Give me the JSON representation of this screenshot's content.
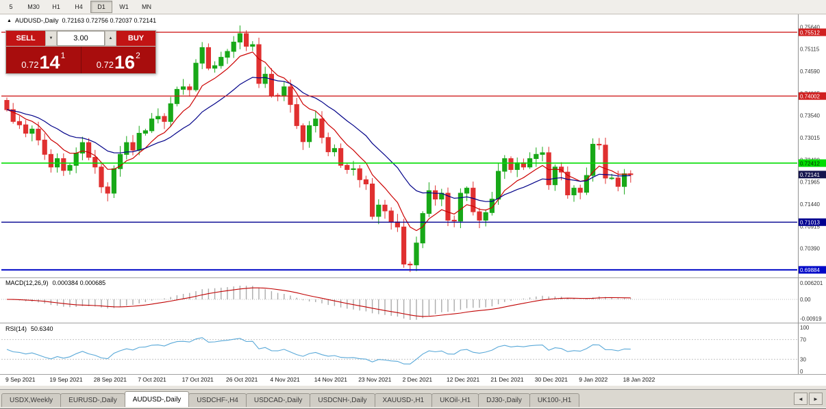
{
  "toolbar": {
    "timeframes": [
      {
        "label": "5",
        "active": false
      },
      {
        "label": "M30",
        "active": false
      },
      {
        "label": "H1",
        "active": false
      },
      {
        "label": "H4",
        "active": false
      },
      {
        "label": "D1",
        "active": true
      },
      {
        "label": "W1",
        "active": false
      },
      {
        "label": "MN",
        "active": false
      }
    ]
  },
  "header": {
    "symbol": "AUDUSD-,Daily",
    "ohlc": "0.72163 0.72756 0.72037 0.72141"
  },
  "icons": {
    "collapse": "▲",
    "spinner_down": "▼",
    "spinner_up": "▲",
    "tab_scroll_left": "◄",
    "tab_scroll_right": "►"
  },
  "trade_panel": {
    "sell_label": "SELL",
    "buy_label": "BUY",
    "lot_size": "3.00",
    "bid": {
      "prefix": "0.72",
      "big": "14",
      "sup": "1"
    },
    "ask": {
      "prefix": "0.72",
      "big": "16",
      "sup": "2"
    }
  },
  "price_axis": {
    "labels": [
      "0.75640",
      "0.75115",
      "0.74590",
      "0.74065",
      "0.73540",
      "0.73015",
      "0.72490",
      "0.71965",
      "0.71440",
      "0.70915",
      "0.70390",
      "0.69865"
    ],
    "current": {
      "price": 0.72141,
      "label": "0.72141",
      "color": "#15154E"
    }
  },
  "macd": {
    "label": "MACD(12,26,9)",
    "values": "0.000384 0.000685",
    "axis": [
      "0.006201",
      "0.00",
      "-0.00919"
    ]
  },
  "rsi": {
    "label": "RSI(14)",
    "value": "50.6340",
    "axis": [
      {
        "label": "100",
        "value": 100
      },
      {
        "label": "70",
        "value": 70
      },
      {
        "label": "30",
        "value": 30
      },
      {
        "label": "0",
        "value": 0
      }
    ],
    "levels": [
      70,
      30
    ]
  },
  "dates": [
    "9 Sep 2021",
    "19 Sep 2021",
    "28 Sep 2021",
    "7 Oct 2021",
    "17 Oct 2021",
    "26 Oct 2021",
    "4 Nov 2021",
    "14 Nov 2021",
    "23 Nov 2021",
    "2 Dec 2021",
    "12 Dec 2021",
    "21 Dec 2021",
    "30 Dec 2021",
    "9 Jan 2022",
    "18 Jan 2022"
  ],
  "tabs": {
    "items": [
      "USDX,Weekly",
      "EURUSD-,Daily",
      "AUDUSD-,Daily",
      "USDCHF-,H4",
      "USDCAD-,Daily",
      "USDCNH-,Daily",
      "XAUUSD-,H1",
      "UKOil-,H1",
      "DJ30-,Daily",
      "UK100-,H1"
    ],
    "active_index": 2
  },
  "chart_data": {
    "type": "candlestick",
    "symbol": "AUDUSD-",
    "timeframe": "Daily",
    "first_open": 0.739,
    "price_range": [
      0.6972,
      0.7592
    ],
    "closes": [
      0.7368,
      0.734,
      0.7332,
      0.7312,
      0.7322,
      0.7296,
      0.7262,
      0.7232,
      0.7252,
      0.7224,
      0.7236,
      0.7265,
      0.729,
      0.7255,
      0.7232,
      0.7185,
      0.717,
      0.7228,
      0.7262,
      0.729,
      0.7272,
      0.7312,
      0.7318,
      0.7346,
      0.7352,
      0.734,
      0.7382,
      0.7416,
      0.7422,
      0.7415,
      0.7478,
      0.7515,
      0.7466,
      0.7472,
      0.7492,
      0.7506,
      0.7528,
      0.7548,
      0.7518,
      0.7522,
      0.743,
      0.7452,
      0.7402,
      0.74,
      0.7422,
      0.738,
      0.733,
      0.7292,
      0.733,
      0.7346,
      0.7302,
      0.7268,
      0.7276,
      0.7236,
      0.7226,
      0.7228,
      0.7202,
      0.7192,
      0.7115,
      0.7142,
      0.7128,
      0.7102,
      0.709,
      0.7002,
      0.7,
      0.7052,
      0.7122,
      0.7176,
      0.7156,
      0.717,
      0.7106,
      0.7104,
      0.717,
      0.7182,
      0.7126,
      0.7106,
      0.7124,
      0.7156,
      0.7222,
      0.7252,
      0.7226,
      0.7242,
      0.7232,
      0.7252,
      0.7262,
      0.7266,
      0.719,
      0.7232,
      0.722,
      0.7166,
      0.7182,
      0.7172,
      0.7212,
      0.7286,
      0.7284,
      0.7206,
      0.7206,
      0.7186,
      0.7216,
      0.72141
    ],
    "colors": {
      "up": "#18A818",
      "down": "#E03030",
      "ma_fast": "#CC0000",
      "ma_slow": "#000088",
      "macd_hist": "#ABABAB",
      "macd_signal": "#C00000",
      "rsi": "#58A8D8"
    },
    "hlines": [
      {
        "price": 0.75512,
        "label": "0.75512",
        "color": "#D02020",
        "text": "#FFFFFF",
        "width": 1.4
      },
      {
        "price": 0.74002,
        "label": "0.74002",
        "color": "#D02020",
        "text": "#FFFFFF",
        "width": 1.4
      },
      {
        "price": 0.72412,
        "label": "0.72412",
        "color": "#00DD00",
        "text": "#0A2A0A",
        "width": 1.6
      },
      {
        "price": 0.71013,
        "label": "0.71013",
        "color": "#000090",
        "text": "#FFFFFF",
        "width": 1.4
      },
      {
        "price": 0.69884,
        "label": "0.69884",
        "color": "#0008C8",
        "text": "#FFFFFF",
        "width": 2
      }
    ]
  }
}
